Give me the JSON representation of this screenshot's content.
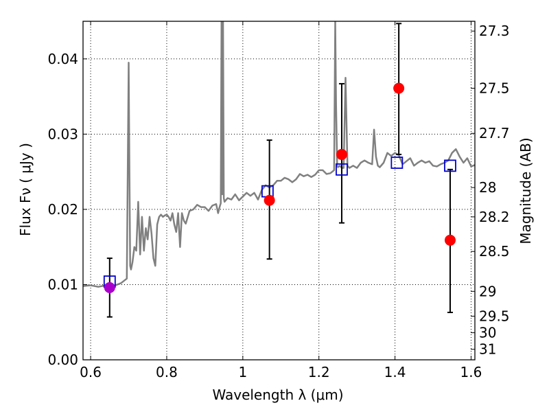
{
  "chart_data": {
    "type": "scatter",
    "xlabel": "Wavelength  λ (μm)",
    "ylabel": "Flux  Fν  ( μJy )",
    "ylabel_right": "Magnitude (AB)",
    "xlim": [
      0.58,
      1.61
    ],
    "ylim": [
      0.0,
      0.045
    ],
    "grid": true,
    "x_ticks": [
      0.6,
      0.8,
      1.0,
      1.2,
      1.4,
      1.6
    ],
    "x_tick_labels": [
      "0.6",
      "0.8",
      "1",
      "1.2",
      "1.4",
      "1.6"
    ],
    "y_ticks": [
      0.0,
      0.01,
      0.02,
      0.03,
      0.04
    ],
    "y_tick_labels": [
      "0.00",
      "0.01",
      "0.02",
      "0.03",
      "0.04"
    ],
    "right_ticks": [
      {
        "label": "27.3",
        "flux": 0.0437
      },
      {
        "label": "27.5",
        "flux": 0.0361
      },
      {
        "label": "27.7",
        "flux": 0.0301
      },
      {
        "label": "28",
        "flux": 0.0229
      },
      {
        "label": "28.2",
        "flux": 0.019
      },
      {
        "label": "28.5",
        "flux": 0.0144
      },
      {
        "label": "29",
        "flux": 0.0091
      },
      {
        "label": "29.5",
        "flux": 0.0058
      },
      {
        "label": "30",
        "flux": 0.0036
      },
      {
        "label": "31",
        "flux": 0.0014
      }
    ],
    "series": [
      {
        "kind": "line",
        "color": "#808080",
        "x": [
          0.58,
          0.6,
          0.62,
          0.64,
          0.66,
          0.68,
          0.695,
          0.7,
          0.702,
          0.704,
          0.706,
          0.71,
          0.715,
          0.72,
          0.725,
          0.73,
          0.735,
          0.74,
          0.745,
          0.75,
          0.755,
          0.76,
          0.765,
          0.77,
          0.775,
          0.78,
          0.785,
          0.79,
          0.795,
          0.8,
          0.805,
          0.81,
          0.815,
          0.82,
          0.825,
          0.83,
          0.835,
          0.84,
          0.845,
          0.85,
          0.86,
          0.87,
          0.88,
          0.89,
          0.9,
          0.91,
          0.92,
          0.93,
          0.935,
          0.94,
          0.942,
          0.944,
          0.946,
          0.948,
          0.95,
          0.952,
          0.955,
          0.96,
          0.97,
          0.98,
          0.99,
          1.0,
          1.01,
          1.02,
          1.03,
          1.04,
          1.05,
          1.06,
          1.07,
          1.08,
          1.09,
          1.1,
          1.11,
          1.12,
          1.13,
          1.14,
          1.15,
          1.16,
          1.17,
          1.18,
          1.19,
          1.2,
          1.21,
          1.22,
          1.23,
          1.24,
          1.243,
          1.245,
          1.248,
          1.25,
          1.255,
          1.26,
          1.265,
          1.27,
          1.275,
          1.28,
          1.29,
          1.3,
          1.31,
          1.32,
          1.33,
          1.34,
          1.345,
          1.35,
          1.355,
          1.36,
          1.37,
          1.38,
          1.39,
          1.4,
          1.41,
          1.42,
          1.43,
          1.44,
          1.45,
          1.46,
          1.47,
          1.48,
          1.49,
          1.5,
          1.51,
          1.52,
          1.53,
          1.54,
          1.55,
          1.56,
          1.57,
          1.58,
          1.59,
          1.6,
          1.61
        ],
        "y": [
          0.0098,
          0.0099,
          0.0097,
          0.0099,
          0.0098,
          0.0102,
          0.0108,
          0.0395,
          0.025,
          0.0125,
          0.012,
          0.013,
          0.015,
          0.0145,
          0.021,
          0.014,
          0.019,
          0.0145,
          0.0175,
          0.016,
          0.019,
          0.0168,
          0.0135,
          0.0125,
          0.018,
          0.019,
          0.0193,
          0.019,
          0.0192,
          0.0193,
          0.019,
          0.0185,
          0.0195,
          0.018,
          0.017,
          0.0195,
          0.015,
          0.0195,
          0.0185,
          0.0181,
          0.0198,
          0.02,
          0.0206,
          0.0203,
          0.0203,
          0.0198,
          0.0205,
          0.0207,
          0.0195,
          0.0205,
          0.0208,
          0.045,
          0.022,
          0.045,
          0.0215,
          0.021,
          0.0212,
          0.0215,
          0.0213,
          0.022,
          0.0212,
          0.0217,
          0.0222,
          0.0218,
          0.0222,
          0.0213,
          0.0226,
          0.0232,
          0.0229,
          0.0232,
          0.0238,
          0.0238,
          0.0242,
          0.024,
          0.0236,
          0.024,
          0.0247,
          0.0244,
          0.0246,
          0.0243,
          0.0246,
          0.0252,
          0.0252,
          0.0247,
          0.0248,
          0.0252,
          0.045,
          0.034,
          0.0258,
          0.0256,
          0.0258,
          0.0255,
          0.0255,
          0.0375,
          0.0258,
          0.0255,
          0.0258,
          0.0255,
          0.0262,
          0.0265,
          0.0262,
          0.026,
          0.0306,
          0.027,
          0.0258,
          0.0256,
          0.0262,
          0.0275,
          0.0271,
          0.0275,
          0.0272,
          0.026,
          0.0264,
          0.0268,
          0.0258,
          0.0262,
          0.0265,
          0.0262,
          0.0264,
          0.0258,
          0.0257,
          0.026,
          0.0262,
          0.0265,
          0.0275,
          0.028,
          0.027,
          0.0262,
          0.0268,
          0.0257,
          0.0259
        ]
      },
      {
        "kind": "open-square",
        "color": "#0000cc",
        "x": [
          0.65,
          1.065,
          1.26,
          1.405,
          1.545
        ],
        "y": [
          0.0104,
          0.0224,
          0.0253,
          0.0262,
          0.0258
        ]
      },
      {
        "kind": "filled-circle",
        "color": "#ff0000",
        "x": [
          1.07,
          1.26,
          1.41,
          1.545
        ],
        "y": [
          0.0212,
          0.0273,
          0.0361,
          0.0159
        ],
        "err_low": [
          0.0078,
          0.0091,
          0.0088,
          0.0096
        ],
        "err_high": [
          0.008,
          0.0094,
          0.0086,
          0.0094
        ]
      },
      {
        "kind": "filled-circle",
        "color": "#aa00cc",
        "x": [
          0.65
        ],
        "y": [
          0.0096
        ],
        "err_low": [
          0.0039
        ],
        "err_high": [
          0.0039
        ]
      }
    ]
  }
}
